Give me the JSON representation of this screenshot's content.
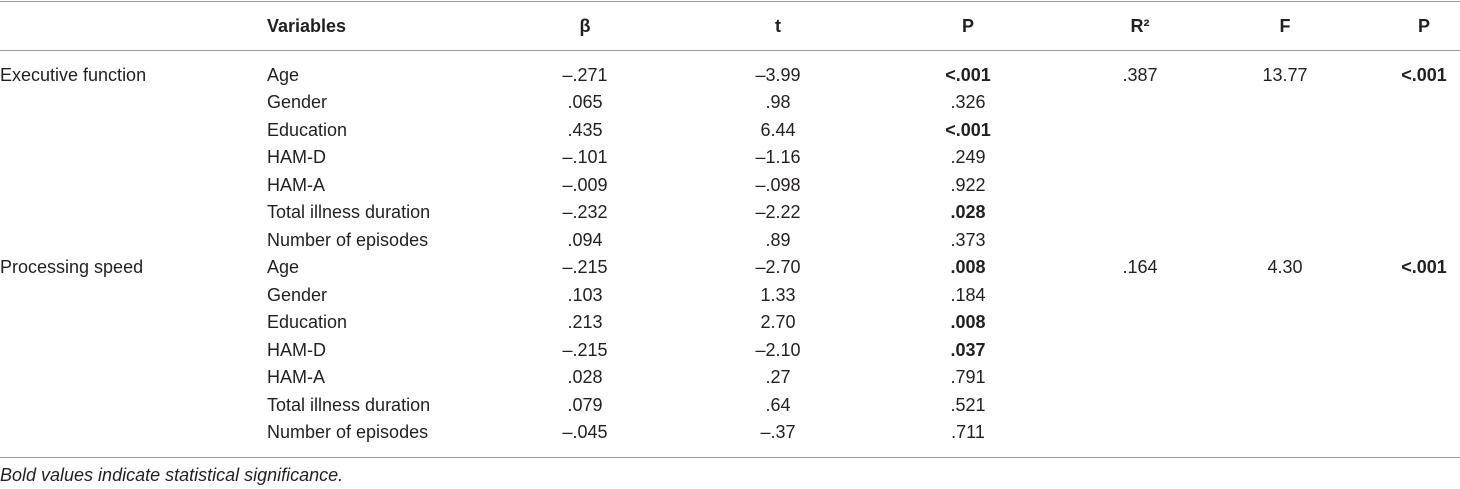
{
  "table": {
    "header": {
      "variable": "Variables",
      "beta": "β",
      "t": "t",
      "p": "P",
      "r2": "R²",
      "f": "F",
      "p_model": "P"
    },
    "rows": [
      {
        "group": "Executive function",
        "variable": "Age",
        "beta": "–.271",
        "t": "–3.99",
        "p": "<.001",
        "r2": ".387",
        "f": "13.77",
        "p_model": "<.001",
        "bold": [
          "p",
          "p_model"
        ]
      },
      {
        "variable": "Gender",
        "beta": ".065",
        "t": ".98",
        "p": ".326"
      },
      {
        "variable": "Education",
        "beta": ".435",
        "t": "6.44",
        "p": "<.001",
        "bold": [
          "p"
        ]
      },
      {
        "variable": "HAM-D",
        "beta": "–.101",
        "t": "–1.16",
        "p": ".249"
      },
      {
        "variable": "HAM-A",
        "beta": "–.009",
        "t": "–.098",
        "p": ".922"
      },
      {
        "variable": "Total illness duration",
        "beta": "–.232",
        "t": "–2.22",
        "p": ".028",
        "bold": [
          "p"
        ]
      },
      {
        "variable": "Number of episodes",
        "beta": ".094",
        "t": ".89",
        "p": ".373"
      },
      {
        "group": "Processing speed",
        "variable": "Age",
        "beta": "–.215",
        "t": "–2.70",
        "p": ".008",
        "r2": ".164",
        "f": "4.30",
        "p_model": "<.001",
        "bold": [
          "p",
          "p_model"
        ]
      },
      {
        "variable": "Gender",
        "beta": ".103",
        "t": "1.33",
        "p": ".184"
      },
      {
        "variable": "Education",
        "beta": ".213",
        "t": "2.70",
        "p": ".008",
        "bold": [
          "p"
        ]
      },
      {
        "variable": "HAM-D",
        "beta": "–.215",
        "t": "–2.10",
        "p": ".037",
        "bold": [
          "p"
        ]
      },
      {
        "variable": "HAM-A",
        "beta": ".028",
        "t": ".27",
        "p": ".791"
      },
      {
        "variable": "Total illness duration",
        "beta": ".079",
        "t": ".64",
        "p": ".521"
      },
      {
        "variable": "Number of episodes",
        "beta": "–.045",
        "t": "–.37",
        "p": ".711"
      }
    ],
    "footnote": "Bold values indicate statistical significance."
  }
}
